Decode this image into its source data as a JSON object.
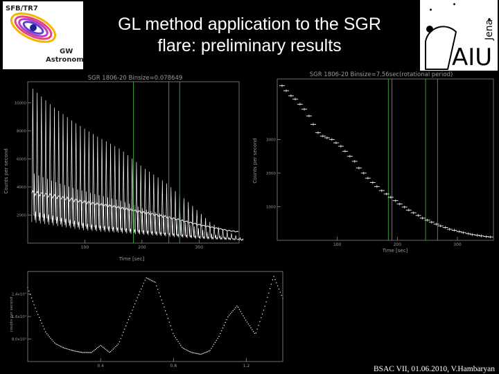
{
  "slide": {
    "title_line1": "GL method application to the SGR",
    "title_line2": "flare: preliminary results",
    "footer": "BSAC VII, 01.06.2010, V.Hambaryan",
    "logo_left_lines": [
      "SFB/TR7",
      "GW",
      "Astronomy"
    ],
    "logo_right_text": "AIU",
    "logo_right_sub": "Jena"
  },
  "chart_data": [
    {
      "type": "line",
      "title": "SGR 1806-20 Binsize=0.078649",
      "xlabel": "Time [sec]",
      "ylabel": "Counts per second",
      "xlim": [
        0,
        370
      ],
      "ylim": [
        0,
        11500
      ],
      "xticks": [
        100,
        200,
        300
      ],
      "yticks": [
        2000,
        4000,
        6000,
        8000,
        10000
      ],
      "ytick_labels": [
        "2000",
        "4000",
        "6000",
        "8000",
        "10000"
      ],
      "pulse_period": 7.56,
      "pulse_start": 7,
      "pulse_end": 370,
      "envelope_peaks": [
        [
          7,
          11000
        ],
        [
          40,
          9800
        ],
        [
          80,
          8600
        ],
        [
          120,
          7600
        ],
        [
          160,
          6700
        ],
        [
          200,
          5400
        ],
        [
          240,
          4300
        ],
        [
          280,
          2900
        ],
        [
          320,
          1400
        ],
        [
          370,
          400
        ]
      ],
      "trough_level": [
        [
          7,
          1500
        ],
        [
          100,
          900
        ],
        [
          200,
          600
        ],
        [
          300,
          300
        ],
        [
          370,
          200
        ]
      ],
      "smoothed": [
        [
          7,
          3600
        ],
        [
          50,
          3300
        ],
        [
          100,
          2900
        ],
        [
          150,
          2600
        ],
        [
          200,
          2200
        ],
        [
          250,
          1800
        ],
        [
          300,
          1300
        ],
        [
          350,
          900
        ],
        [
          370,
          800
        ]
      ],
      "vlines": [
        185,
        247,
        266
      ],
      "vline_color": "#3a9a3a"
    },
    {
      "type": "scatter",
      "title": "SGR 1806-20 Binsize=7.56sec(rotational period)",
      "xlabel": "Time [sec]",
      "ylabel": "Counts per second",
      "xlim": [
        0,
        360
      ],
      "ylim": [
        0,
        4800
      ],
      "xticks": [
        100,
        200,
        300
      ],
      "yticks": [
        1000,
        2000,
        3000
      ],
      "ytick_labels": [
        "1000",
        "2000",
        "3000"
      ],
      "x": [
        8,
        15,
        23,
        30,
        38,
        45,
        53,
        60,
        68,
        76,
        83,
        91,
        98,
        106,
        113,
        121,
        129,
        136,
        144,
        151,
        159,
        166,
        174,
        182,
        189,
        197,
        204,
        212,
        219,
        227,
        235,
        242,
        250,
        257,
        265,
        272,
        280,
        287,
        295,
        303,
        310,
        318,
        325,
        333,
        340,
        348,
        355
      ],
      "y": [
        4600,
        4450,
        4300,
        4200,
        4050,
        3900,
        3700,
        3450,
        3200,
        3100,
        3050,
        3000,
        2900,
        2800,
        2650,
        2500,
        2350,
        2150,
        2000,
        1850,
        1720,
        1600,
        1480,
        1380,
        1280,
        1180,
        1080,
        990,
        900,
        820,
        740,
        660,
        600,
        540,
        480,
        430,
        380,
        330,
        300,
        260,
        230,
        200,
        170,
        150,
        130,
        110,
        100
      ],
      "vlines": [
        185,
        191,
        247,
        267
      ],
      "vline_color": "#3a9a3a"
    },
    {
      "type": "line",
      "title": "",
      "xlabel": "",
      "ylabel": "counts per second",
      "xlim": [
        0,
        1.4
      ],
      "ylim": [
        0,
        1
      ],
      "xticks": [
        0.4,
        0.8,
        1.2
      ],
      "yticks": [
        0.25,
        0.5,
        0.75
      ],
      "ytick_labels": [
        "8.0x10³",
        "1.6x10⁴",
        "2.4x10⁴"
      ],
      "x": [
        0,
        0.05,
        0.1,
        0.15,
        0.2,
        0.25,
        0.3,
        0.35,
        0.4,
        0.45,
        0.5,
        0.55,
        0.6,
        0.65,
        0.7,
        0.75,
        0.8,
        0.85,
        0.9,
        0.95,
        1.0,
        1.05,
        1.1,
        1.15,
        1.2,
        1.25,
        1.3,
        1.35,
        1.4
      ],
      "y": [
        0.82,
        0.55,
        0.32,
        0.2,
        0.15,
        0.12,
        0.1,
        0.1,
        0.18,
        0.1,
        0.2,
        0.45,
        0.7,
        0.93,
        0.88,
        0.6,
        0.3,
        0.15,
        0.1,
        0.08,
        0.12,
        0.28,
        0.5,
        0.62,
        0.45,
        0.3,
        0.6,
        0.95,
        0.7
      ]
    }
  ]
}
